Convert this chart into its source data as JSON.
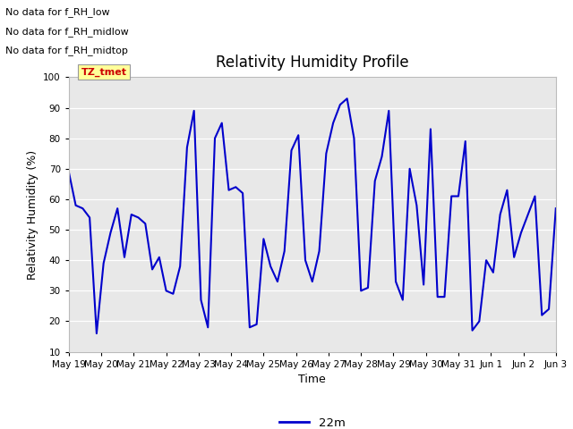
{
  "title": "Relativity Humidity Profile",
  "xlabel": "Time",
  "ylabel": "Relativity Humidity (%)",
  "ylim": [
    10,
    100
  ],
  "yticks": [
    10,
    20,
    30,
    40,
    50,
    60,
    70,
    80,
    90,
    100
  ],
  "line_color": "#0000CC",
  "line_width": 1.5,
  "legend_label": "22m",
  "background_color": "#FFFFFF",
  "plot_bg_color": "#E8E8E8",
  "annotations": [
    "No data for f_RH_low",
    "No data for f_RH_midlow",
    "No data for f_RH_midtop"
  ],
  "tz_tmet_label": "TZ_tmet",
  "tz_tmet_color": "#CC0000",
  "tz_tmet_bg": "#FFFF99",
  "x_tick_labels": [
    "May 19",
    "May 20",
    "May 21",
    "May 22",
    "May 23",
    "May 24",
    "May 25",
    "May 26",
    "May 27",
    "May 28",
    "May 29",
    "May 30",
    "May 31",
    "Jun 1",
    "Jun 2",
    "Jun 3"
  ],
  "y_data": [
    69,
    58,
    57,
    54,
    16,
    39,
    49,
    57,
    41,
    55,
    54,
    52,
    37,
    41,
    30,
    29,
    38,
    77,
    89,
    27,
    18,
    80,
    85,
    63,
    64,
    62,
    18,
    19,
    47,
    38,
    33,
    43,
    76,
    81,
    40,
    33,
    43,
    75,
    85,
    91,
    93,
    80,
    30,
    31,
    66,
    74,
    89,
    33,
    27,
    70,
    58,
    32,
    83,
    28,
    28,
    61,
    61,
    79,
    17,
    20,
    40,
    36,
    55,
    63,
    41,
    49,
    55,
    61,
    22,
    24,
    57
  ]
}
